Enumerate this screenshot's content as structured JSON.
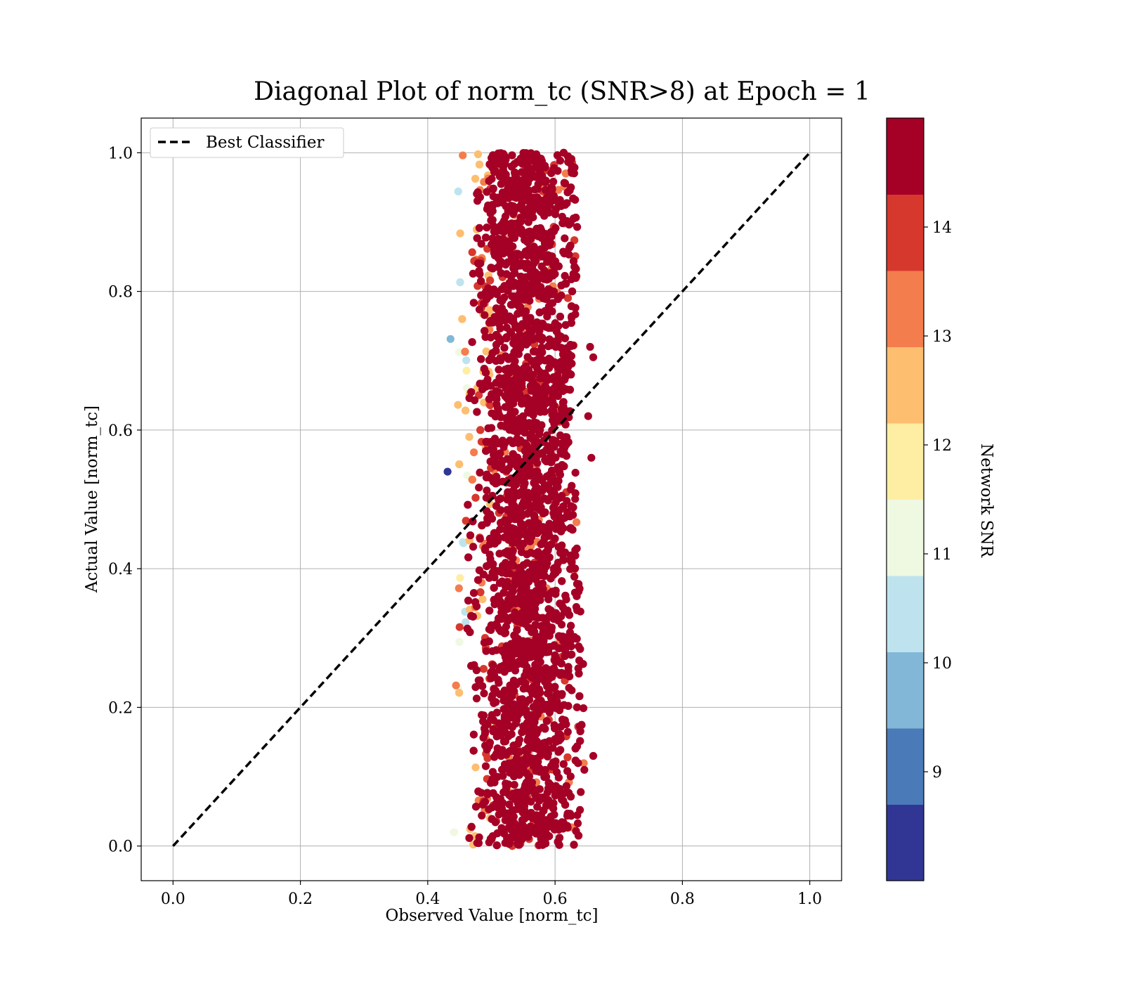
{
  "chart_data": {
    "type": "scatter",
    "title": "Diagonal Plot of norm_tc (SNR>8) at Epoch = 1",
    "xlabel": "Observed Value [norm_tc]",
    "ylabel": "Actual Value [norm_tc]",
    "xlim": [
      -0.05,
      1.05
    ],
    "ylim": [
      -0.05,
      1.05
    ],
    "xticks": [
      0.0,
      0.2,
      0.4,
      0.6,
      0.8,
      1.0
    ],
    "yticks": [
      0.0,
      0.2,
      0.4,
      0.6,
      0.8,
      1.0
    ],
    "xtick_labels": [
      "0.0",
      "0.2",
      "0.4",
      "0.6",
      "0.8",
      "1.0"
    ],
    "ytick_labels": [
      "0.0",
      "0.2",
      "0.4",
      "0.6",
      "0.8",
      "1.0"
    ],
    "grid": true,
    "legend_position": "top-left",
    "series": [
      {
        "name": "Best Classifier",
        "kind": "dashed-line",
        "color": "#000000",
        "x": [
          0.0,
          1.0
        ],
        "y": [
          0.0,
          1.0
        ]
      },
      {
        "kind": "scatter-points",
        "color_by": "Network SNR",
        "x_range": [
          0.43,
          0.66
        ],
        "y_range": [
          0.0,
          1.0
        ],
        "dense_core_x": [
          0.52,
          0.63
        ],
        "dominant_snr": 14.5
      }
    ],
    "colorbar": {
      "label": "Network SNR",
      "range": [
        8.0,
        15.0
      ],
      "boundaries": [
        8.0,
        8.7,
        9.4,
        10.1,
        10.8,
        11.5,
        12.2,
        12.9,
        13.6,
        14.3,
        15.0
      ],
      "ticks": [
        9,
        10,
        11,
        12,
        13,
        14
      ],
      "tick_labels": [
        "9",
        "10",
        "11",
        "12",
        "13",
        "14"
      ],
      "colors": [
        "#313695",
        "#4a7ab7",
        "#82b7d7",
        "#bee3ee",
        "#eff8e1",
        "#feeea4",
        "#fdbe70",
        "#f47d4d",
        "#d7382d",
        "#a50026"
      ]
    }
  }
}
